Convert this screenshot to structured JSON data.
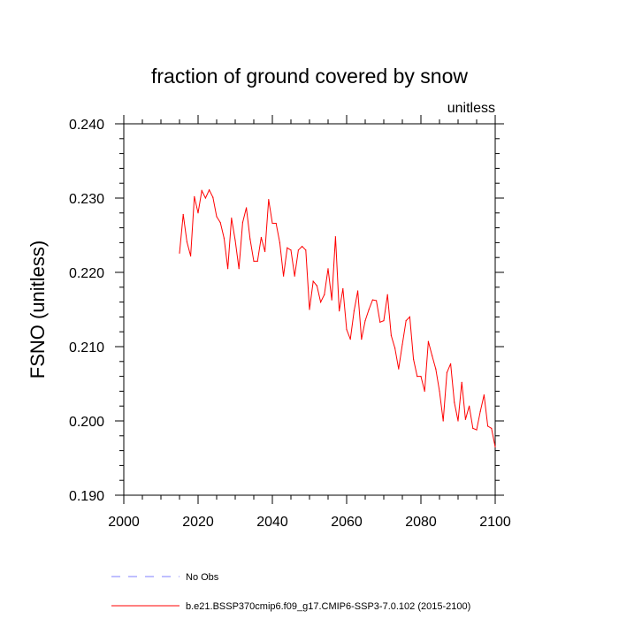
{
  "chart_data": {
    "type": "line",
    "title": "fraction of ground covered by snow",
    "units_label": "unitless",
    "ylabel": "FSNO  (unitless)",
    "xlabel": "",
    "xlim": [
      2000,
      2100
    ],
    "ylim": [
      0.19,
      0.24
    ],
    "xticks": [
      2000,
      2020,
      2040,
      2060,
      2080,
      2100
    ],
    "xtick_labels": [
      "2000",
      "2020",
      "2040",
      "2060",
      "2080",
      "2100"
    ],
    "yticks": [
      0.19,
      0.2,
      0.21,
      0.22,
      0.23,
      0.24
    ],
    "ytick_labels": [
      "0.190",
      "0.200",
      "0.210",
      "0.220",
      "0.230",
      "0.240"
    ],
    "grid": false,
    "legend_position": "bottom",
    "legend": [
      {
        "label": "No Obs",
        "color": "#7f7fff",
        "style": "dashed"
      },
      {
        "label": "b.e21.BSSP370cmip6.f09_g17.CMIP6-SSP3-7.0.102 (2015-2100)",
        "color": "#ff0000",
        "style": "solid"
      }
    ],
    "series": [
      {
        "name": "b.e21.BSSP370cmip6.f09_g17.CMIP6-SSP3-7.0.102 (2015-2100)",
        "color": "#ff0000",
        "x": [
          2015,
          2016,
          2017,
          2018,
          2019,
          2020,
          2021,
          2022,
          2023,
          2024,
          2025,
          2026,
          2027,
          2028,
          2029,
          2030,
          2031,
          2032,
          2033,
          2034,
          2035,
          2036,
          2037,
          2038,
          2039,
          2040,
          2041,
          2042,
          2043,
          2044,
          2045,
          2046,
          2047,
          2048,
          2049,
          2050,
          2051,
          2052,
          2053,
          2054,
          2055,
          2056,
          2057,
          2058,
          2059,
          2060,
          2061,
          2062,
          2063,
          2064,
          2065,
          2066,
          2067,
          2068,
          2069,
          2070,
          2071,
          2072,
          2073,
          2074,
          2075,
          2076,
          2077,
          2078,
          2079,
          2080,
          2081,
          2082,
          2083,
          2084,
          2085,
          2086,
          2087,
          2088,
          2089,
          2090,
          2091,
          2092,
          2093,
          2094,
          2095,
          2096,
          2097,
          2098,
          2099,
          2100
        ],
        "y": [
          0.2226,
          0.2278,
          0.2241,
          0.2222,
          0.2302,
          0.228,
          0.231,
          0.23,
          0.2311,
          0.2301,
          0.2275,
          0.2267,
          0.2246,
          0.2205,
          0.2273,
          0.2243,
          0.2205,
          0.2267,
          0.2287,
          0.2245,
          0.2215,
          0.2215,
          0.2247,
          0.2228,
          0.2298,
          0.2266,
          0.2266,
          0.224,
          0.2195,
          0.2233,
          0.223,
          0.2195,
          0.223,
          0.2235,
          0.223,
          0.215,
          0.2188,
          0.2182,
          0.216,
          0.217,
          0.2205,
          0.2163,
          0.2248,
          0.2148,
          0.2178,
          0.2123,
          0.211,
          0.2148,
          0.2175,
          0.211,
          0.2135,
          0.215,
          0.2163,
          0.2162,
          0.2133,
          0.2135,
          0.217,
          0.2115,
          0.2098,
          0.207,
          0.2103,
          0.2135,
          0.214,
          0.2083,
          0.206,
          0.206,
          0.204,
          0.2107,
          0.2088,
          0.207,
          0.204,
          0.2,
          0.2065,
          0.2077,
          0.2025,
          0.2,
          0.2052,
          0.2002,
          0.202,
          0.199,
          0.1988,
          0.2013,
          0.2035,
          0.1993,
          0.199,
          0.1965
        ]
      }
    ]
  }
}
